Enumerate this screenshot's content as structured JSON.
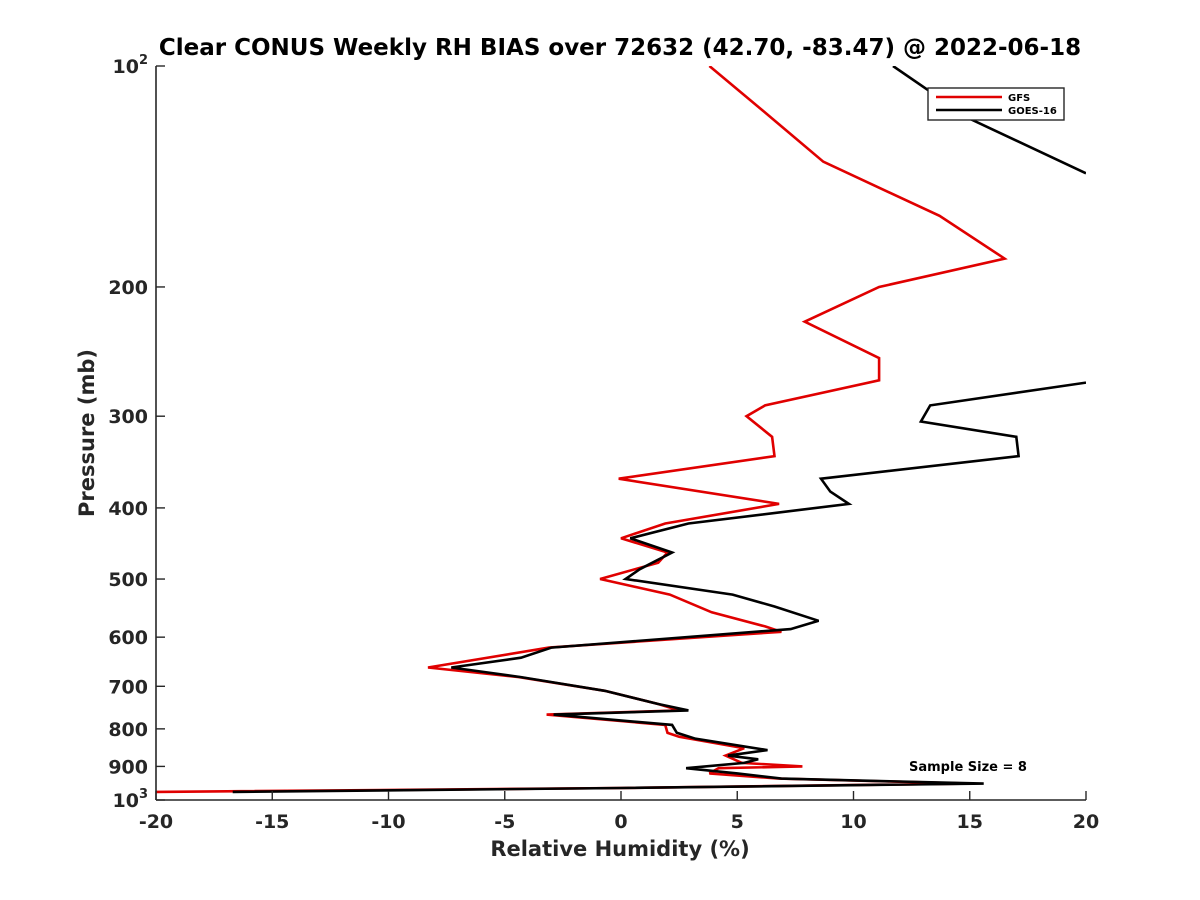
{
  "chart_data": {
    "type": "line",
    "title": "Clear CONUS Weekly RH BIAS over 72632 (42.70, -83.47) @ 2022-06-18",
    "xlabel": "Relative Humidity (%)",
    "ylabel": "Pressure (mb)",
    "xlim": [
      -20,
      20
    ],
    "ylim": [
      100,
      1000
    ],
    "y_scale": "log",
    "y_reversed": true,
    "grid": false,
    "legend_position": "top-right",
    "x_ticks": [
      "-20",
      "-15",
      "-10",
      "-5",
      "0",
      "5",
      "10",
      "15",
      "20"
    ],
    "y_ticks": [
      {
        "value": 100,
        "base": "10",
        "exp": "2"
      },
      {
        "value": 200,
        "label": "200"
      },
      {
        "value": 300,
        "label": "300"
      },
      {
        "value": 400,
        "label": "400"
      },
      {
        "value": 500,
        "label": "500"
      },
      {
        "value": 600,
        "label": "600"
      },
      {
        "value": 700,
        "label": "700"
      },
      {
        "value": 800,
        "label": "800"
      },
      {
        "value": 900,
        "label": "900"
      },
      {
        "value": 1000,
        "base": "10",
        "exp": "3"
      }
    ],
    "annotation": "Sample Size = 8",
    "series": [
      {
        "name": "GFS",
        "color": "#e00000",
        "points": [
          [
            3.8,
            100
          ],
          [
            6.1,
            115
          ],
          [
            8.7,
            135
          ],
          [
            13.7,
            160
          ],
          [
            16.5,
            183
          ],
          [
            11.1,
            200
          ],
          [
            7.9,
            223
          ],
          [
            11.1,
            250
          ],
          [
            11.1,
            268
          ],
          [
            6.2,
            290
          ],
          [
            5.4,
            300
          ],
          [
            6.5,
            320
          ],
          [
            6.6,
            340
          ],
          [
            -0.1,
            365
          ],
          [
            6.8,
            395
          ],
          [
            1.9,
            420
          ],
          [
            0.0,
            440
          ],
          [
            2.0,
            460
          ],
          [
            1.6,
            475
          ],
          [
            -0.9,
            500
          ],
          [
            2.1,
            525
          ],
          [
            3.9,
            555
          ],
          [
            6.2,
            580
          ],
          [
            6.9,
            590
          ],
          [
            -3.1,
            620
          ],
          [
            -8.3,
            660
          ],
          [
            -4.4,
            680
          ],
          [
            -0.7,
            710
          ],
          [
            1.6,
            740
          ],
          [
            2.5,
            755
          ],
          [
            -3.2,
            765
          ],
          [
            1.9,
            790
          ],
          [
            2.0,
            810
          ],
          [
            2.5,
            820
          ],
          [
            5.3,
            850
          ],
          [
            4.5,
            870
          ],
          [
            5.2,
            890
          ],
          [
            7.8,
            900
          ],
          [
            4.2,
            905
          ],
          [
            3.8,
            920
          ],
          [
            6.8,
            935
          ],
          [
            15.0,
            950
          ],
          [
            0.0,
            963
          ],
          [
            -20.0,
            975
          ]
        ]
      },
      {
        "name": "GOES-16",
        "color": "#000000",
        "points": [
          [
            11.7,
            100
          ],
          [
            15.0,
            118
          ],
          [
            20.0,
            140
          ],
          null,
          [
            20.0,
            270
          ],
          [
            13.3,
            290
          ],
          [
            12.9,
            305
          ],
          [
            17.0,
            320
          ],
          [
            17.1,
            340
          ],
          [
            8.6,
            365
          ],
          [
            9.0,
            380
          ],
          [
            9.8,
            395
          ],
          [
            2.9,
            420
          ],
          [
            0.4,
            440
          ],
          [
            2.2,
            460
          ],
          [
            0.8,
            485
          ],
          [
            0.2,
            500
          ],
          [
            4.8,
            525
          ],
          [
            6.6,
            545
          ],
          [
            8.5,
            570
          ],
          [
            7.3,
            585
          ],
          [
            -3.0,
            620
          ],
          [
            -4.3,
            640
          ],
          [
            -7.3,
            660
          ],
          [
            -4.3,
            680
          ],
          [
            -0.7,
            710
          ],
          [
            1.6,
            740
          ],
          [
            2.9,
            755
          ],
          [
            -2.9,
            765
          ],
          [
            2.2,
            790
          ],
          [
            2.4,
            810
          ],
          [
            3.2,
            825
          ],
          [
            6.3,
            855
          ],
          [
            4.6,
            870
          ],
          [
            5.9,
            880
          ],
          [
            5.3,
            890
          ],
          [
            2.8,
            905
          ],
          [
            5.0,
            920
          ],
          [
            6.9,
            935
          ],
          [
            15.6,
            950
          ],
          [
            0.0,
            963
          ],
          [
            -16.7,
            975
          ]
        ]
      }
    ]
  }
}
